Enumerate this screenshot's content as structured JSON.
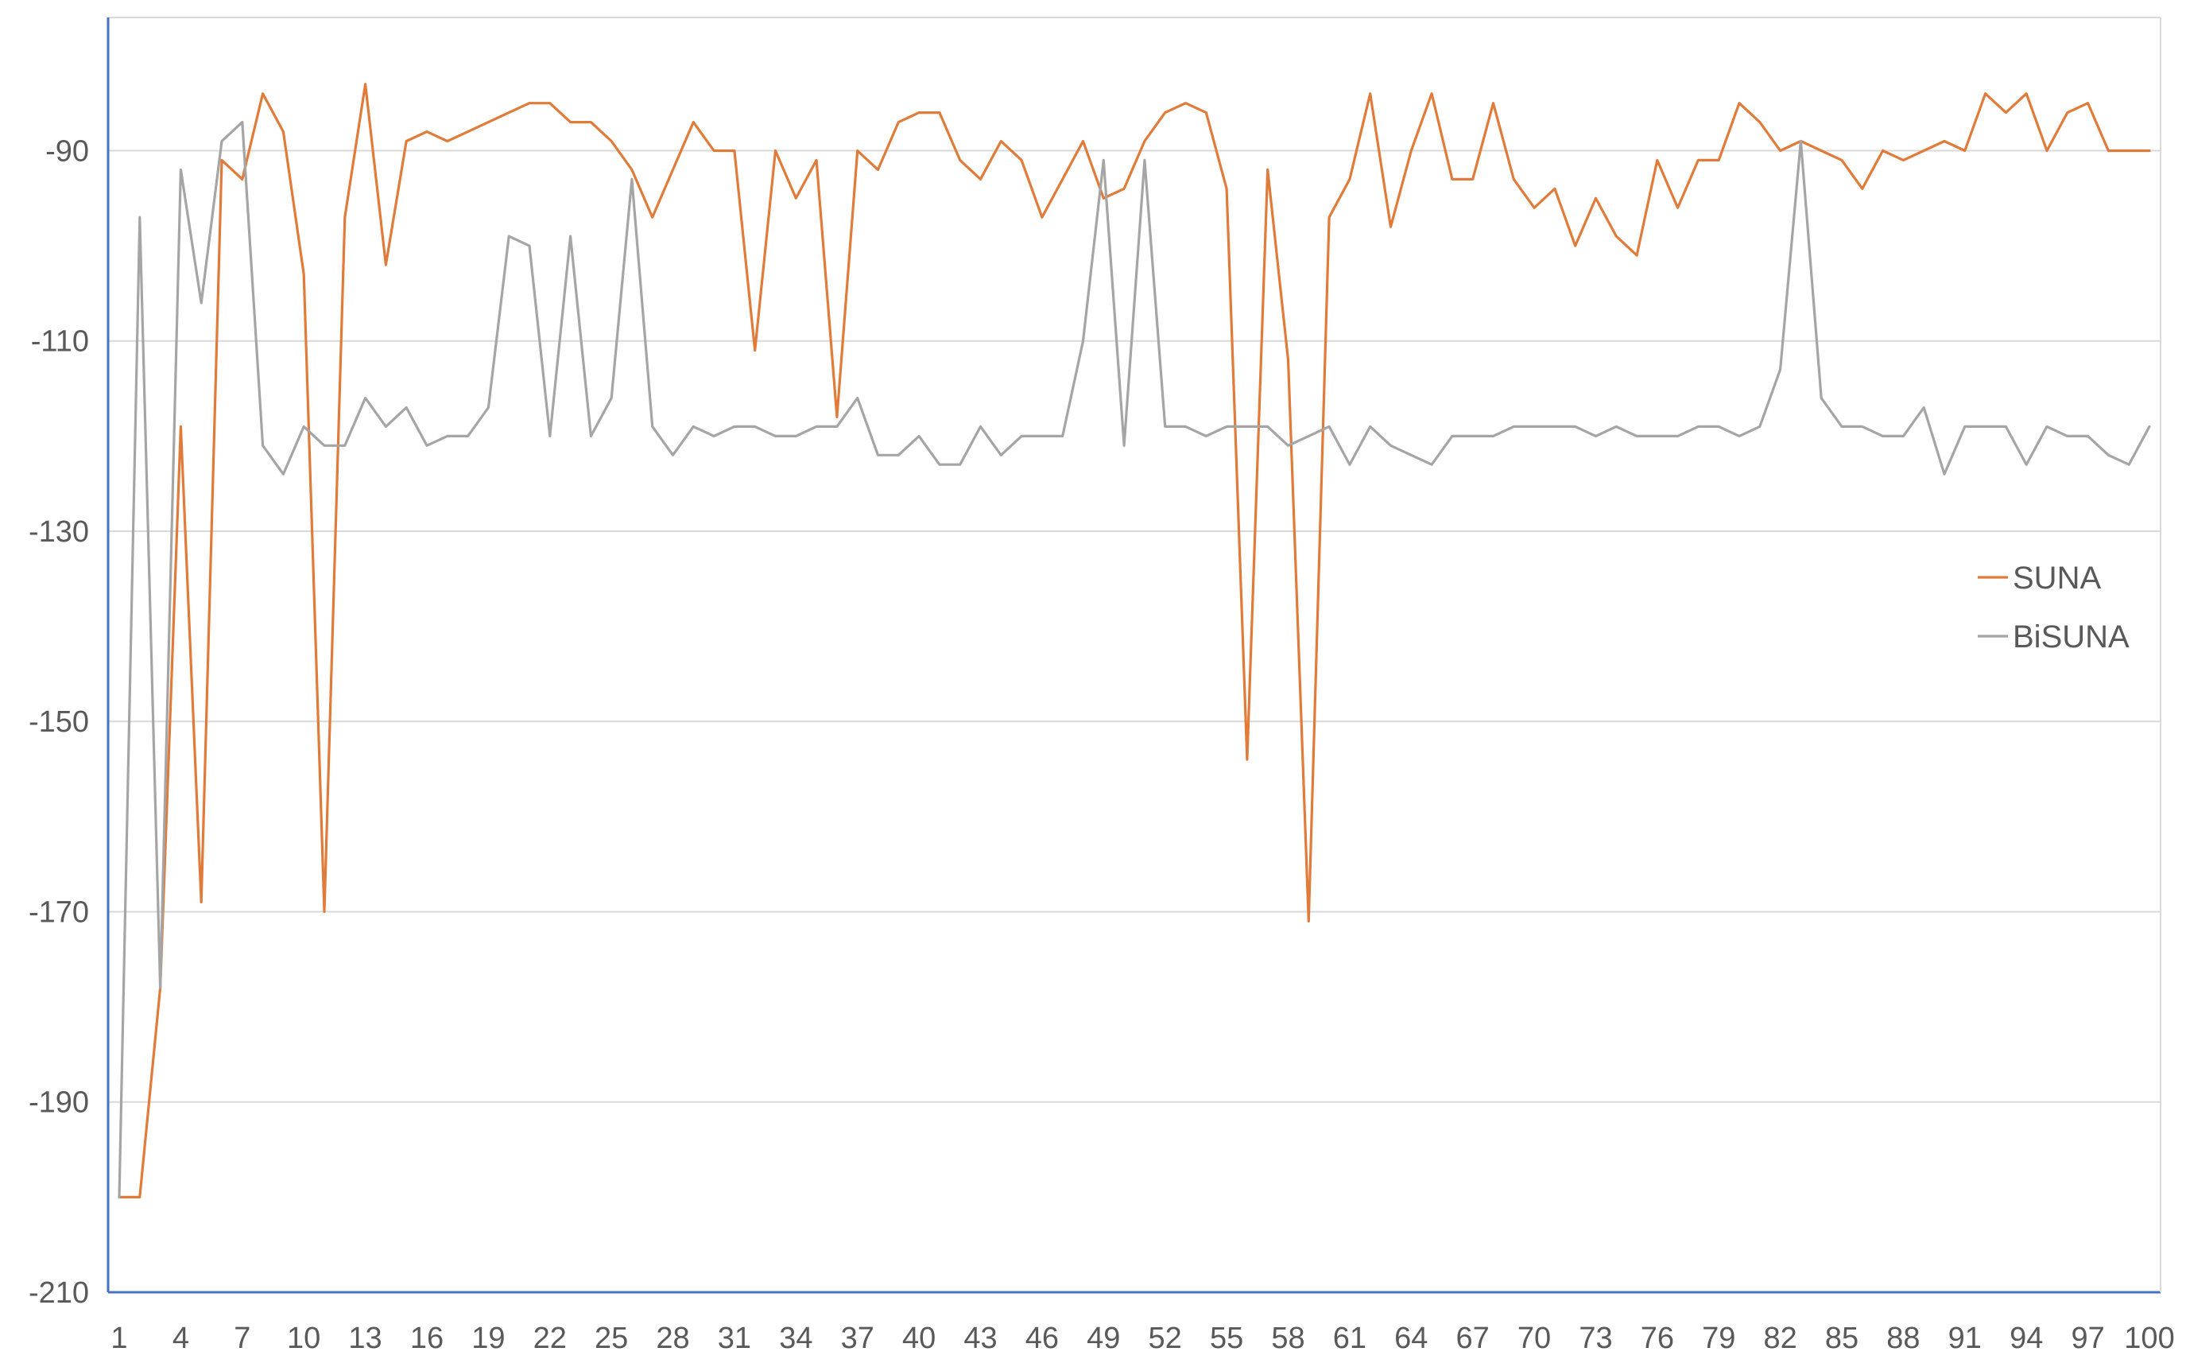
{
  "chart_data": {
    "type": "line",
    "title": "",
    "xlabel": "",
    "ylabel": "",
    "x": [
      1,
      2,
      3,
      4,
      5,
      6,
      7,
      8,
      9,
      10,
      11,
      12,
      13,
      14,
      15,
      16,
      17,
      18,
      19,
      20,
      21,
      22,
      23,
      24,
      25,
      26,
      27,
      28,
      29,
      30,
      31,
      32,
      33,
      34,
      35,
      36,
      37,
      38,
      39,
      40,
      41,
      42,
      43,
      44,
      45,
      46,
      47,
      48,
      49,
      50,
      51,
      52,
      53,
      54,
      55,
      56,
      57,
      58,
      59,
      60,
      61,
      62,
      63,
      64,
      65,
      66,
      67,
      68,
      69,
      70,
      71,
      72,
      73,
      74,
      75,
      76,
      77,
      78,
      79,
      80,
      81,
      82,
      83,
      84,
      85,
      86,
      87,
      88,
      89,
      90,
      91,
      92,
      93,
      94,
      95,
      96,
      97,
      98,
      99,
      100
    ],
    "x_tick_labels": [
      "1",
      "4",
      "7",
      "10",
      "13",
      "16",
      "19",
      "22",
      "25",
      "28",
      "31",
      "34",
      "37",
      "40",
      "43",
      "46",
      "49",
      "52",
      "55",
      "58",
      "61",
      "64",
      "67",
      "70",
      "73",
      "76",
      "79",
      "82",
      "85",
      "88",
      "91",
      "94",
      "97",
      "100"
    ],
    "ylim": [
      -210,
      -76
    ],
    "y_ticks": [
      -90,
      -110,
      -130,
      -150,
      -170,
      -190,
      -210
    ],
    "y_tick_labels": [
      "-90",
      "-110",
      "-130",
      "-150",
      "-170",
      "-190",
      "-210"
    ],
    "grid": "horizontal",
    "legend_position": "right",
    "series": [
      {
        "name": "SUNA",
        "color": "#E07B39",
        "values": [
          -200,
          -200,
          -178,
          -119,
          -169,
          -91,
          -93,
          -84,
          -88,
          -103,
          -170,
          -97,
          -83,
          -102,
          -89,
          -88,
          -89,
          -88,
          -87,
          -86,
          -85,
          -85,
          -87,
          -87,
          -89,
          -92,
          -97,
          -92,
          -87,
          -90,
          -90,
          -111,
          -90,
          -95,
          -91,
          -118,
          -90,
          -92,
          -87,
          -86,
          -86,
          -91,
          -93,
          -89,
          -91,
          -97,
          -93,
          -89,
          -95,
          -94,
          -89,
          -86,
          -85,
          -86,
          -94,
          -154,
          -92,
          -112,
          -171,
          -97,
          -93,
          -84,
          -98,
          -90,
          -84,
          -93,
          -93,
          -85,
          -93,
          -96,
          -94,
          -100,
          -95,
          -99,
          -101,
          -91,
          -96,
          -91,
          -91,
          -85,
          -87,
          -90,
          -89,
          -90,
          -91,
          -94,
          -90,
          -91,
          -90,
          -89,
          -90,
          -84,
          -86,
          -84,
          -90,
          -86,
          -85,
          -90,
          -90,
          -90
        ]
      },
      {
        "name": "BiSUNA",
        "color": "#A5A5A5",
        "values": [
          -200,
          -97,
          -178,
          -92,
          -106,
          -89,
          -87,
          -121,
          -124,
          -119,
          -121,
          -121,
          -116,
          -119,
          -117,
          -121,
          -120,
          -120,
          -117,
          -99,
          -100,
          -120,
          -99,
          -120,
          -116,
          -93,
          -119,
          -122,
          -119,
          -120,
          -119,
          -119,
          -120,
          -120,
          -119,
          -119,
          -116,
          -122,
          -122,
          -120,
          -123,
          -123,
          -119,
          -122,
          -120,
          -120,
          -120,
          -110,
          -91,
          -121,
          -91,
          -119,
          -119,
          -120,
          -119,
          -119,
          -119,
          -121,
          -120,
          -119,
          -123,
          -119,
          -121,
          -122,
          -123,
          -120,
          -120,
          -120,
          -119,
          -119,
          -119,
          -119,
          -120,
          -119,
          -120,
          -120,
          -120,
          -119,
          -119,
          -120,
          -119,
          -113,
          -89,
          -116,
          -119,
          -119,
          -120,
          -120,
          -117,
          -124,
          -119,
          -119,
          -119,
          -123,
          -119,
          -120,
          -120,
          -122,
          -123,
          -119
        ]
      }
    ]
  }
}
